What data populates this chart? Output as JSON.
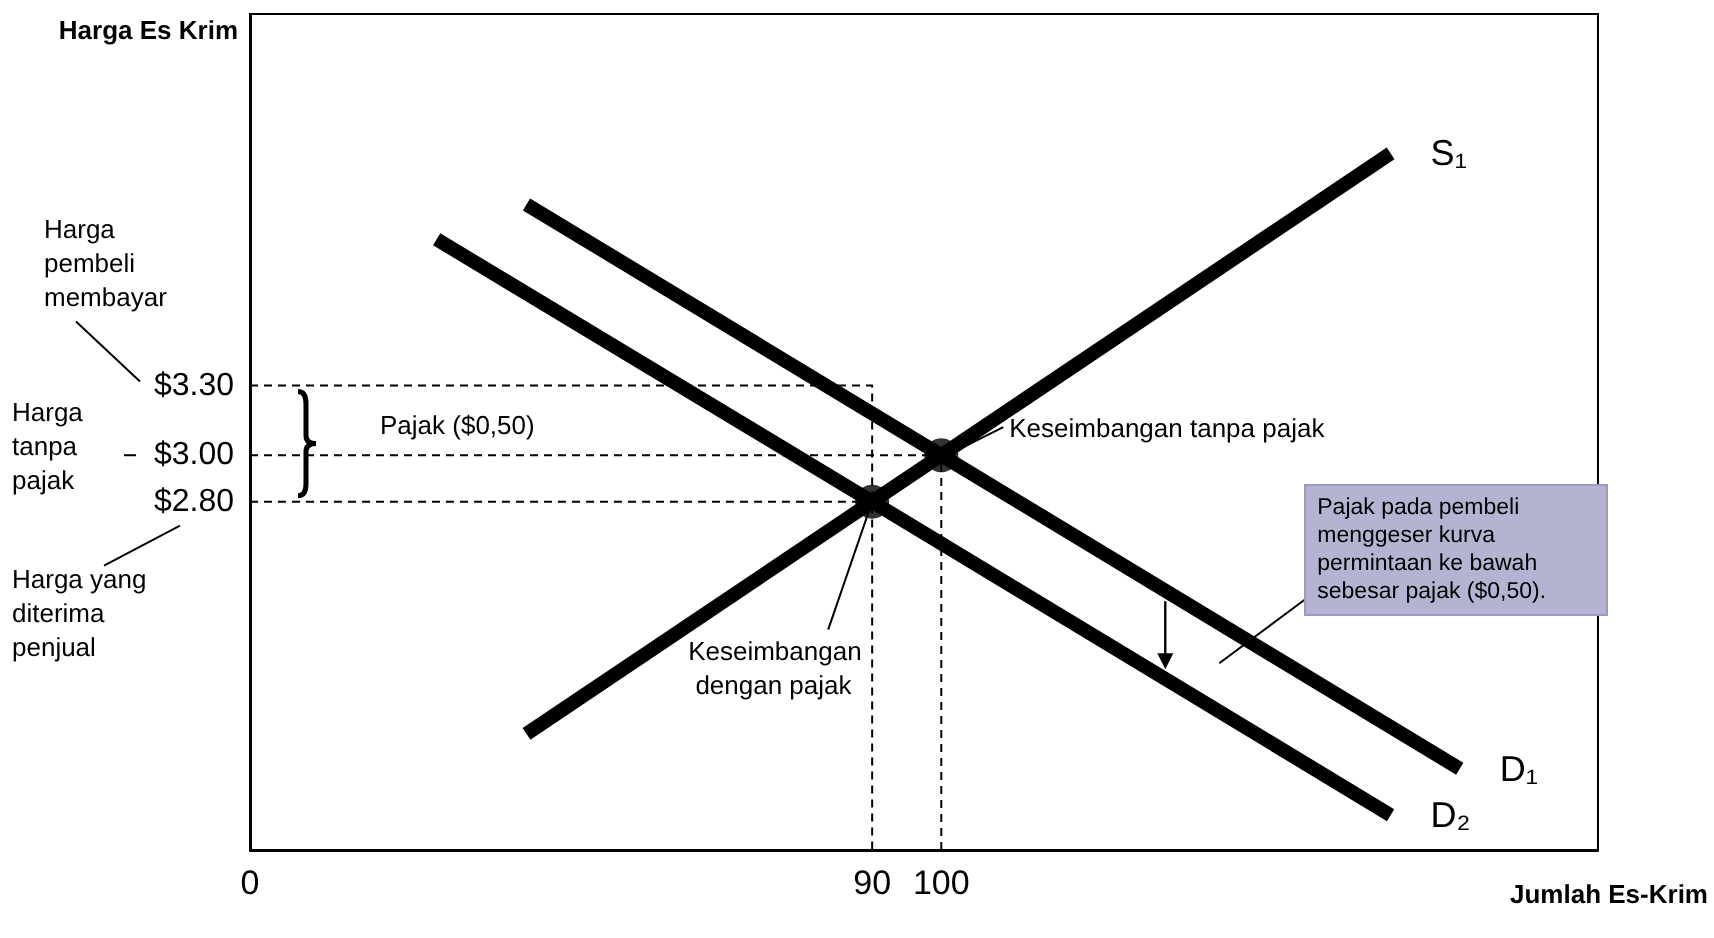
{
  "chart_data": {
    "type": "line",
    "xlabel": "Jumlah Es-Krim",
    "ylabel": "Harga Es Krim",
    "xlim": [
      0,
      195
    ],
    "xticks": [
      0,
      90,
      100
    ],
    "ylim": [
      1.3,
      4.9
    ],
    "yticks": [
      {
        "value": 2.8,
        "label": "$2.80"
      },
      {
        "value": 3.0,
        "label": "$3.00"
      },
      {
        "value": 3.3,
        "label": "$3.30"
      }
    ],
    "grid": false,
    "legend": false,
    "series": [
      {
        "name": "S₁",
        "color": "#000000",
        "x": [
          40,
          90,
          100,
          165
        ],
        "values": [
          1.8,
          2.8,
          3.0,
          4.3
        ],
        "marker": "none",
        "line_style": "solid"
      },
      {
        "name": "D₁",
        "color": "#000000",
        "x": [
          40,
          100,
          175
        ],
        "values": [
          4.08,
          3.0,
          1.65
        ],
        "marker": "none",
        "line_style": "solid"
      },
      {
        "name": "D₂",
        "color": "#000000",
        "x": [
          27,
          90,
          165
        ],
        "values": [
          3.93,
          2.8,
          1.45
        ],
        "marker": "none",
        "line_style": "solid"
      },
      {
        "color": "#000000",
        "x": [
          0,
          90,
          90
        ],
        "values": [
          3.3,
          3.3,
          1.3
        ],
        "marker": "none",
        "line_style": "dashed"
      },
      {
        "color": "#000000",
        "x": [
          0,
          100,
          100
        ],
        "values": [
          3.0,
          3.0,
          1.3
        ],
        "marker": "none",
        "line_style": "dashed"
      },
      {
        "color": "#000000",
        "x": [
          0,
          90
        ],
        "values": [
          2.8,
          2.8
        ],
        "marker": "none",
        "line_style": "dashed"
      },
      {
        "type": "scatter",
        "color": "#000000",
        "x": [
          90,
          100
        ],
        "values": [
          2.8,
          3.0
        ],
        "marker": "circle"
      }
    ],
    "annotations": [
      "Harga pembeli membayar",
      "Harga tanpa pajak",
      "Harga yang diterima penjual",
      "Pajak ($0,50)",
      {
        "text": "Keseimbangan tanpa pajak",
        "x": 100,
        "y": 3.0
      },
      {
        "text": "Keseimbangan dengan pajak",
        "x": 90,
        "y": 2.8
      },
      "Pajak pada pembeli menggeser kurva permintaan ke bawah sebesar pajak ($0,50)."
    ]
  }
}
